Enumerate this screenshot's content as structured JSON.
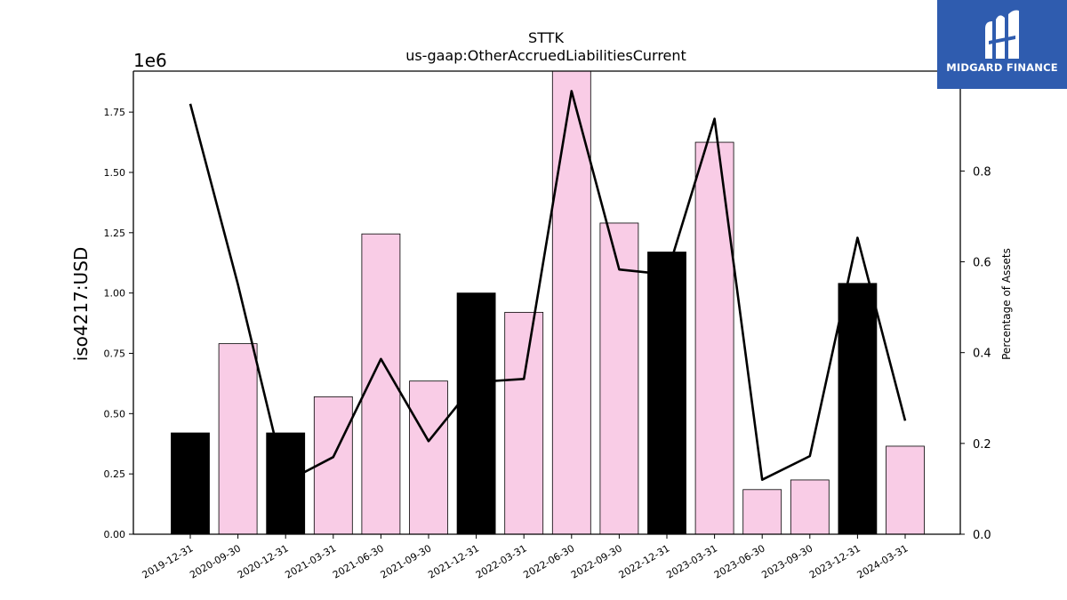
{
  "chart_data": {
    "type": "bar",
    "title": "STTK",
    "subtitle": "us-gaap:OtherAccruedLiabilitiesCurrent",
    "ylabel": "iso4217:USD",
    "ylabel_right": "Percentage of Assets",
    "y_offset_label": "1e6",
    "ylim": [
      0,
      1.92
    ],
    "ylim_right": [
      0,
      1.02
    ],
    "yticks": [
      "0.00",
      "0.25",
      "0.50",
      "0.75",
      "1.00",
      "1.25",
      "1.50",
      "1.75"
    ],
    "yticks_right": [
      "0.0",
      "0.2",
      "0.4",
      "0.6",
      "0.8"
    ],
    "categories": [
      "2019-12-31",
      "2020-09-30",
      "2020-12-31",
      "2021-03-31",
      "2021-06-30",
      "2021-09-30",
      "2021-12-31",
      "2022-03-31",
      "2022-06-30",
      "2022-09-30",
      "2022-12-31",
      "2023-03-31",
      "2023-06-30",
      "2023-09-30",
      "2023-12-31",
      "2024-03-31"
    ],
    "series": [
      {
        "type": "bar",
        "values": [
          0.42,
          0.79,
          0.42,
          0.57,
          1.245,
          0.635,
          1.0,
          0.92,
          1.92,
          1.29,
          1.17,
          1.625,
          0.185,
          0.225,
          1.04,
          0.365
        ],
        "colors": [
          "#000000",
          "#f9cce6",
          "#000000",
          "#f9cce6",
          "#f9cce6",
          "#f9cce6",
          "#000000",
          "#f9cce6",
          "#f9cce6",
          "#f9cce6",
          "#000000",
          "#f9cce6",
          "#f9cce6",
          "#f9cce6",
          "#000000",
          "#f9cce6"
        ]
      },
      {
        "type": "line",
        "axis": "right",
        "values": [
          0.948,
          0.55,
          0.115,
          0.17,
          0.386,
          0.205,
          0.335,
          0.342,
          0.976,
          0.583,
          0.572,
          0.915,
          0.12,
          0.172,
          0.653,
          0.25
        ],
        "color": "#000000"
      }
    ]
  },
  "logo": {
    "text": "MIDGARD FINANCE"
  }
}
